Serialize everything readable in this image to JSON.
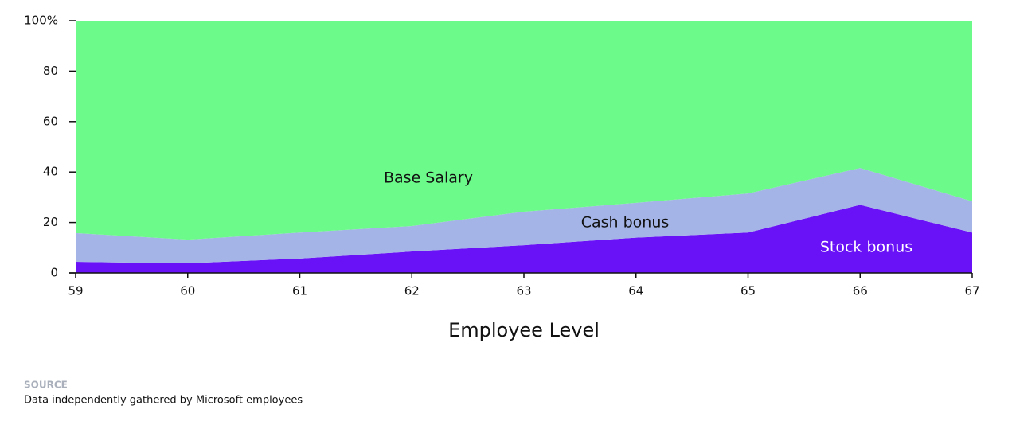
{
  "chart_data": {
    "type": "stacked_area",
    "x": [
      59,
      60,
      61,
      62,
      63,
      64,
      65,
      66,
      67
    ],
    "xlim": [
      59,
      67
    ],
    "xticks": [
      59,
      60,
      61,
      62,
      63,
      64,
      65,
      66,
      67
    ],
    "ylim": [
      0,
      100
    ],
    "yticks": [
      0,
      20,
      40,
      60,
      80,
      {
        "value": 100,
        "label": "100%"
      }
    ],
    "xlabel": "Employee Level",
    "series": [
      {
        "name": "Stock bonus",
        "color": "#6a12f7",
        "label_color": "#ffffff",
        "values": [
          4.4,
          3.8,
          5.7,
          8.5,
          11,
          14,
          16,
          27,
          16
        ]
      },
      {
        "name": "Cash bonus",
        "color": "#a4b4e6",
        "label_color": "#111111",
        "values": [
          11.4,
          9.4,
          10.3,
          10.1,
          13.3,
          13.8,
          15.5,
          14.6,
          12.4
        ]
      },
      {
        "name": "Base Salary",
        "color": "#6cfa8a",
        "label_color": "#111111",
        "values": [
          84.2,
          86.8,
          84,
          81.4,
          75.7,
          72.2,
          68.5,
          58.4,
          71.6
        ]
      }
    ],
    "source_label": "SOURCE",
    "source_text": "Data independently gathered by Microsoft employees"
  }
}
